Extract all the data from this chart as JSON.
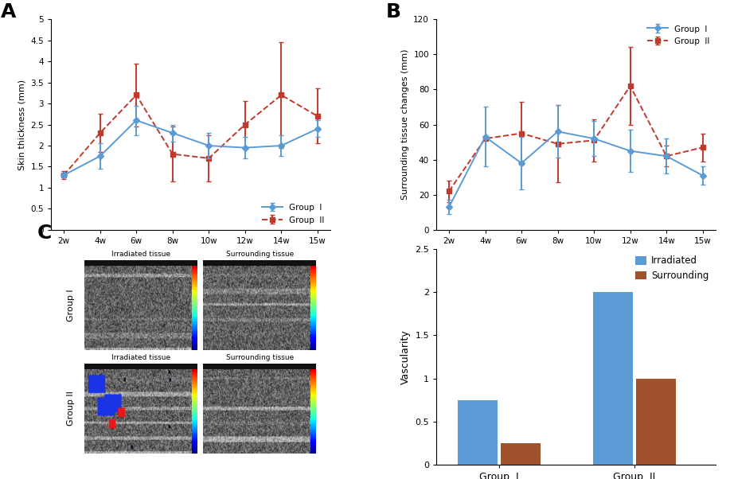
{
  "weeks": [
    "2w",
    "4w",
    "6w",
    "8w",
    "10w",
    "12w",
    "14w",
    "15w"
  ],
  "A_group1_y": [
    1.3,
    1.75,
    2.6,
    2.3,
    2.0,
    1.95,
    2.0,
    2.4
  ],
  "A_group1_err": [
    0.05,
    0.3,
    0.35,
    0.2,
    0.3,
    0.25,
    0.25,
    0.2
  ],
  "A_group2_y": [
    1.3,
    2.3,
    3.2,
    1.8,
    1.7,
    2.5,
    3.2,
    2.7
  ],
  "A_group2_err": [
    0.1,
    0.45,
    0.75,
    0.65,
    0.55,
    0.55,
    1.25,
    0.65
  ],
  "A_ylabel": "Skin thickness (mm)",
  "A_ylim": [
    0,
    5
  ],
  "A_yticks": [
    0,
    0.5,
    1.0,
    1.5,
    2.0,
    2.5,
    3.0,
    3.5,
    4.0,
    4.5,
    5.0
  ],
  "B_group1_y": [
    13,
    53,
    38,
    56,
    52,
    45,
    42,
    31
  ],
  "B_group1_err": [
    4,
    17,
    15,
    15,
    10,
    12,
    10,
    5
  ],
  "B_group2_y": [
    22,
    52,
    55,
    49,
    51,
    82,
    42,
    47
  ],
  "B_group2_err": [
    6,
    0,
    18,
    22,
    12,
    22,
    6,
    8
  ],
  "B_ylabel": "Surrounding tissue changes (mm)",
  "B_ylim": [
    0,
    120
  ],
  "B_yticks": [
    0,
    20,
    40,
    60,
    80,
    100,
    120
  ],
  "bar_groups": [
    "Group  I",
    "Group  II"
  ],
  "bar_irradiated": [
    0.75,
    2.0
  ],
  "bar_surrounding": [
    0.25,
    1.0
  ],
  "bar_ylabel": "Vascularity",
  "bar_ylim": [
    0,
    2.5
  ],
  "bar_yticks": [
    0,
    0.5,
    1.0,
    1.5,
    2.0,
    2.5
  ],
  "color_group1": "#5B9BD5",
  "color_group2": "#C0392B",
  "color_irradiated": "#5B9BD5",
  "color_surrounding": "#A0522D",
  "bg_color": "#FFFFFF"
}
